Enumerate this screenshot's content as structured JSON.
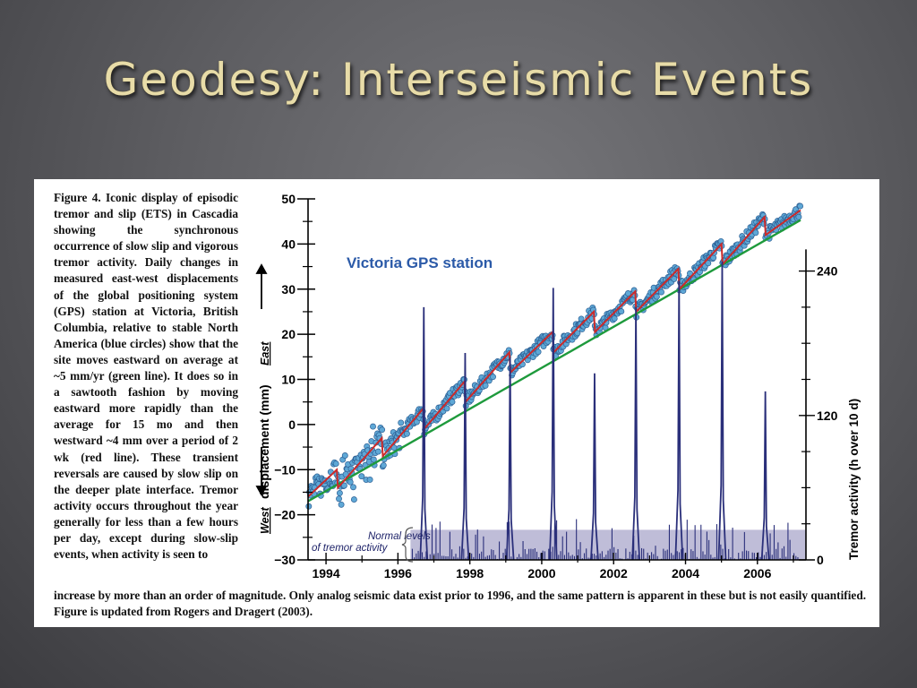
{
  "slide": {
    "title": "Geodesy: Interseismic Events"
  },
  "figure": {
    "caption_side": "Figure 4. Iconic display of episodic tremor and slip (ETS) in Cascadia showing the synchronous occurrence of slow slip and vigorous tremor activity. Daily changes in measured east-west displacements of the global positioning system (GPS) station at Victoria, British Columbia, relative to stable North America (blue circles) show that the site moves eastward on average at ~5 mm/yr (green line). It does so in a sawtooth fashion by moving eastward more rapidly than the average for 15 mo and then westward ~4 mm over a period of 2 wk (red line). These transient reversals are caused by slow slip on the deeper plate interface. Tremor activity occurs throughout the year generally for less than a few hours per day, except during slow-slip events, when activity is seen to",
    "caption_tail": "increase by more than an order of magnitude. Only analog seismic data exist prior to 1996, and the same pattern is apparent in these but is not easily quantified. Figure is updated from Rogers and Dragert (2003)."
  },
  "chart_data": {
    "type": "line",
    "title": "Victoria GPS station",
    "x_range": [
      1993.5,
      2007.35
    ],
    "x_ticks": [
      "1994",
      "1996",
      "1998",
      "2000",
      "2002",
      "2004",
      "2006"
    ],
    "x_tick_values": [
      1994,
      1996,
      1998,
      2000,
      2002,
      2004,
      2006
    ],
    "y_left": {
      "label_west": "West",
      "label_main": "displacement (mm)",
      "label_east": "East",
      "range": [
        -30,
        50
      ],
      "ticks": [
        "−30",
        "−20",
        "−10",
        "0",
        "10",
        "20",
        "30",
        "40",
        "50"
      ],
      "tick_values": [
        -30,
        -20,
        -10,
        0,
        10,
        20,
        30,
        40,
        50
      ]
    },
    "y_right": {
      "label": "Tremor activity (h over 10 d)",
      "range": [
        0,
        300
      ],
      "ticks": [
        "0",
        "120",
        "240"
      ],
      "tick_values": [
        0,
        120,
        240
      ]
    },
    "normal_band": {
      "label_line1": "Normal levels",
      "label_line2": "of tremor activity",
      "x_start": 1996.35,
      "x_end": 2007.35,
      "level": 25
    },
    "series": [
      {
        "role": "trend",
        "color": "#1e9a3c",
        "x": [
          1993.5,
          2007.2
        ],
        "y": [
          -17.0,
          45.3
        ]
      },
      {
        "role": "sawtooth",
        "color": "#cc2a2a",
        "x": [
          1993.5,
          1994.3,
          1994.33,
          1995.55,
          1995.58,
          1996.7,
          1996.73,
          1997.85,
          1997.88,
          1999.1,
          1999.13,
          2000.3,
          2000.33,
          2001.45,
          2001.48,
          2002.6,
          2002.63,
          2003.8,
          2003.83,
          2005.0,
          2005.03,
          2006.2,
          2006.23,
          2007.2
        ],
        "y": [
          -16.0,
          -10.0,
          -14.0,
          -3.0,
          -7.0,
          3.5,
          -1.0,
          9.5,
          5.0,
          16.0,
          11.5,
          20.5,
          16.0,
          25.0,
          20.5,
          29.5,
          25.0,
          34.5,
          30.0,
          40.0,
          35.5,
          46.0,
          42.0,
          47.5
        ]
      },
      {
        "role": "tremor",
        "color": "#2a2f7a",
        "x": [
          1996.72,
          1997.87,
          1999.12,
          2000.32,
          2001.47,
          2002.62,
          2003.82,
          2005.02,
          2006.22
        ],
        "y": [
          210,
          172,
          168,
          226,
          155,
          210,
          232,
          248,
          140
        ]
      }
    ]
  }
}
